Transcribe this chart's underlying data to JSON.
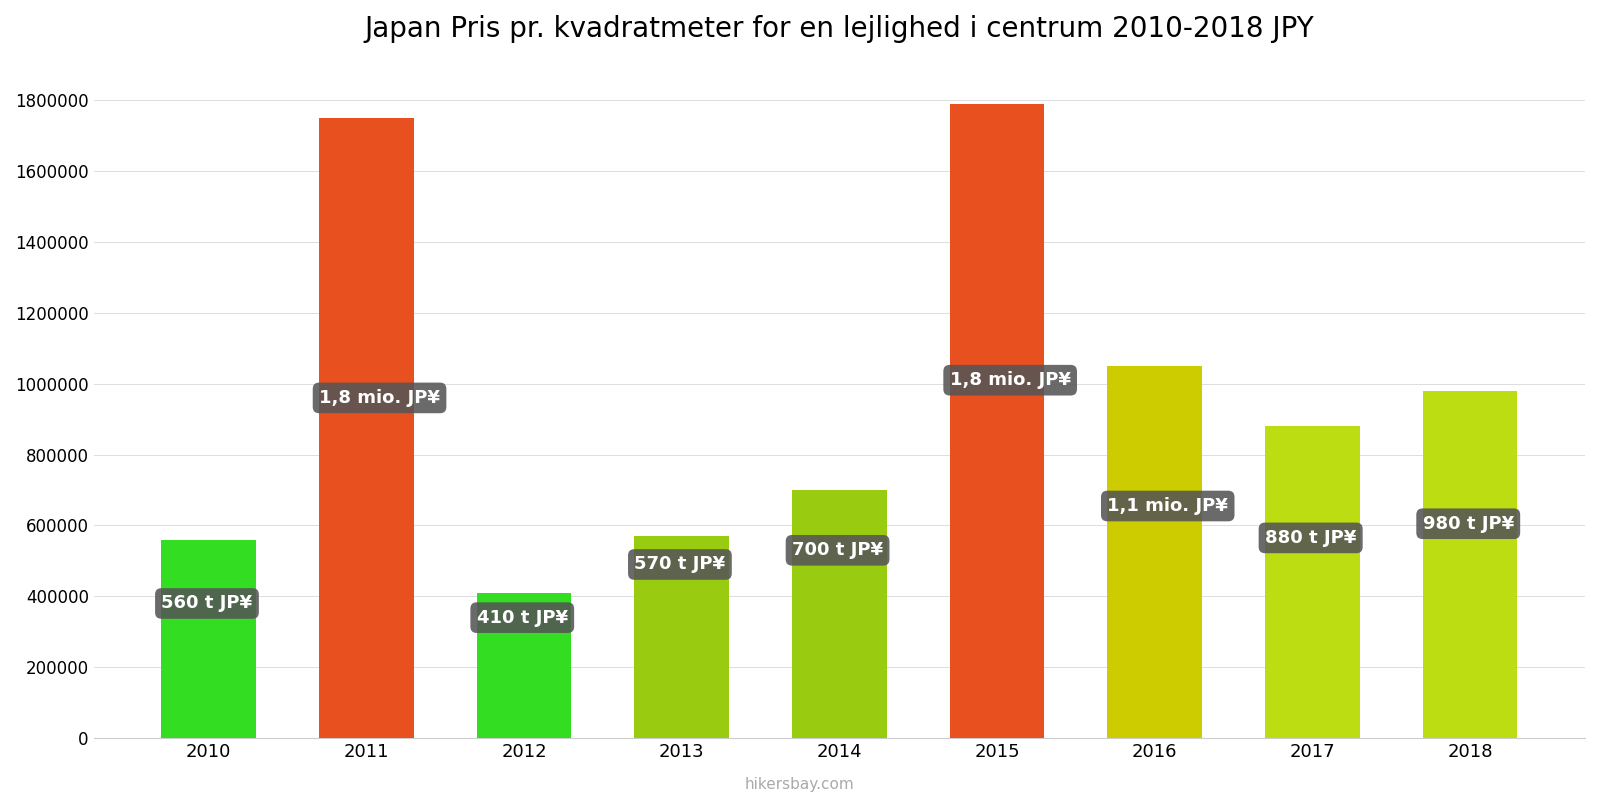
{
  "title": "Japan Pris pr. kvadratmeter for en lejlighed i centrum 2010-2018 JPY",
  "years": [
    2010,
    2011,
    2012,
    2013,
    2014,
    2015,
    2016,
    2017,
    2018
  ],
  "values": [
    560000,
    1750000,
    410000,
    570000,
    700000,
    1790000,
    1050000,
    880000,
    980000
  ],
  "bar_colors": [
    "#33dd22",
    "#e85020",
    "#33dd22",
    "#99cc11",
    "#99cc11",
    "#e85020",
    "#cccc00",
    "#bbdd11",
    "#bbdd11"
  ],
  "labels": [
    "560 t JP¥",
    "1,8 mio. JP¥",
    "410 t JP¥",
    "570 t JP¥",
    "700 t JP¥",
    "1,8 mio. JP¥",
    "1,1 mio. JP¥",
    "880 t JP¥",
    "980 t JP¥"
  ],
  "label_y_positions": [
    380000,
    960000,
    340000,
    490000,
    530000,
    1010000,
    655000,
    565000,
    605000
  ],
  "ylim": [
    0,
    1900000
  ],
  "ylabel_ticks": [
    0,
    200000,
    400000,
    600000,
    800000,
    1000000,
    1200000,
    1400000,
    1600000,
    1800000
  ],
  "ylabel_tick_labels": [
    "0",
    "200000",
    "400000",
    "600000",
    "800000",
    "1000000",
    "1200000",
    "1400000",
    "1600000",
    "1800000"
  ],
  "watermark": "hikersbay.com",
  "bg_color": "#ffffff",
  "label_box_color": "#555555",
  "label_text_color": "#ffffff",
  "title_fontsize": 20,
  "bar_width": 0.6
}
